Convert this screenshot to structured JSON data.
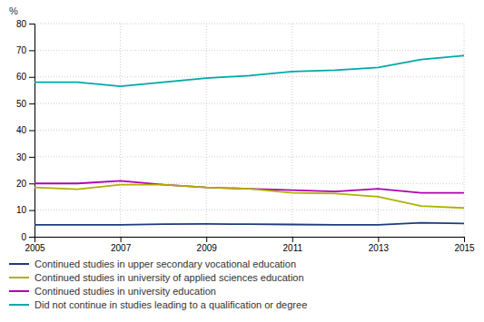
{
  "chart_data": {
    "type": "line",
    "ylabel": "%",
    "x": [
      2005,
      2006,
      2007,
      2008,
      2009,
      2010,
      2011,
      2012,
      2013,
      2014,
      2015
    ],
    "series": [
      {
        "name": "Continued studies in upper secondary vocational education",
        "color": "#1a3d7c",
        "values": [
          4.5,
          4.5,
          4.5,
          4.7,
          4.8,
          4.7,
          4.6,
          4.5,
          4.5,
          5.2,
          5.0
        ]
      },
      {
        "name": "Continued studies in university of applied sciences education",
        "color": "#b0b000",
        "values": [
          18.5,
          17.8,
          19.5,
          19.5,
          18.5,
          18.0,
          16.5,
          16.2,
          15.0,
          11.5,
          10.8
        ]
      },
      {
        "name": "Continued studies in university education",
        "color": "#b000b0",
        "values": [
          20.0,
          20.0,
          21.0,
          19.5,
          18.5,
          18.0,
          17.5,
          17.0,
          18.0,
          16.5,
          16.5
        ]
      },
      {
        "name": "Did not continue in studies leading to a qualification or degree",
        "color": "#00a8a8",
        "values": [
          58.0,
          58.0,
          56.5,
          58.0,
          59.5,
          60.5,
          62.0,
          62.5,
          63.5,
          66.5,
          68.0
        ]
      }
    ],
    "xlim": [
      2005,
      2015
    ],
    "xticks": [
      2005,
      2007,
      2009,
      2011,
      2013,
      2015
    ],
    "ylim": [
      0,
      80
    ],
    "yticks": [
      0,
      10,
      20,
      30,
      40,
      50,
      60,
      70,
      80
    ],
    "grid": true,
    "legend": "bottom"
  }
}
